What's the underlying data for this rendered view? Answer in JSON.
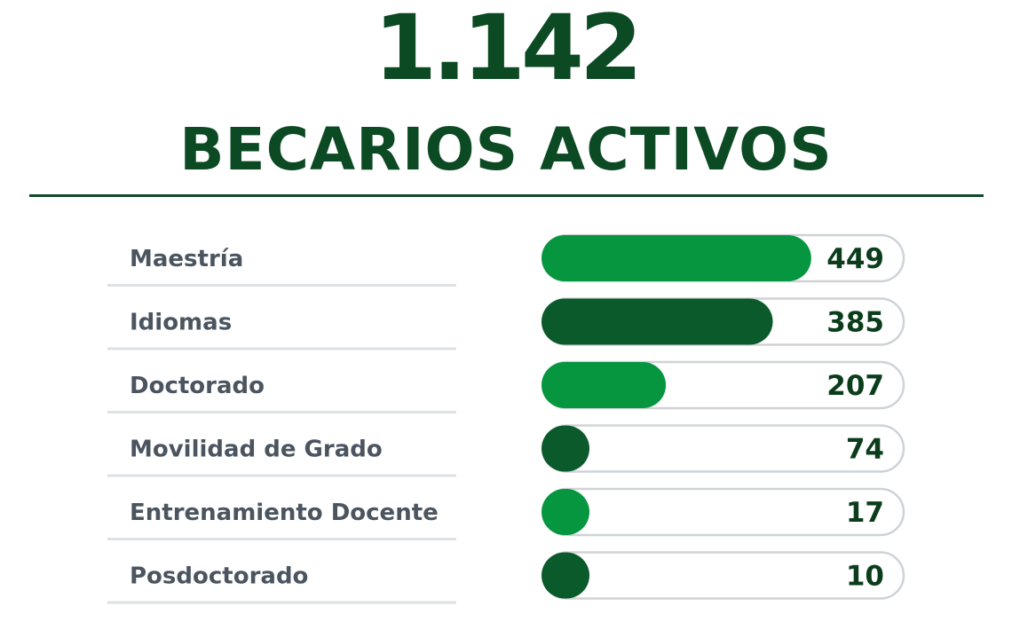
{
  "header": {
    "total": "1.142",
    "title": "BECARIOS ACTIVOS"
  },
  "colors": {
    "bright_green": "#06963f",
    "dark_green": "#0b5a2c",
    "heading_green": "#0b4a22",
    "track_border": "#cfd3d6",
    "label_gray": "#4b5560"
  },
  "chart_data": {
    "type": "bar",
    "orientation": "horizontal",
    "title": "BECARIOS ACTIVOS",
    "categories": [
      "Maestría",
      "Idiomas",
      "Doctorado",
      "Movilidad de Grado",
      "Entrenamiento Docente",
      "Posdoctorado"
    ],
    "values": [
      449,
      385,
      207,
      74,
      17,
      10
    ],
    "value_labels": [
      "449",
      "385",
      "207",
      "74",
      "17",
      "10"
    ],
    "bar_colors": [
      "#06963f",
      "#0b5a2c",
      "#06963f",
      "#0b5a2c",
      "#06963f",
      "#0b5a2c"
    ],
    "xlim": [
      0,
      600
    ],
    "grid": false,
    "legend": "none"
  }
}
